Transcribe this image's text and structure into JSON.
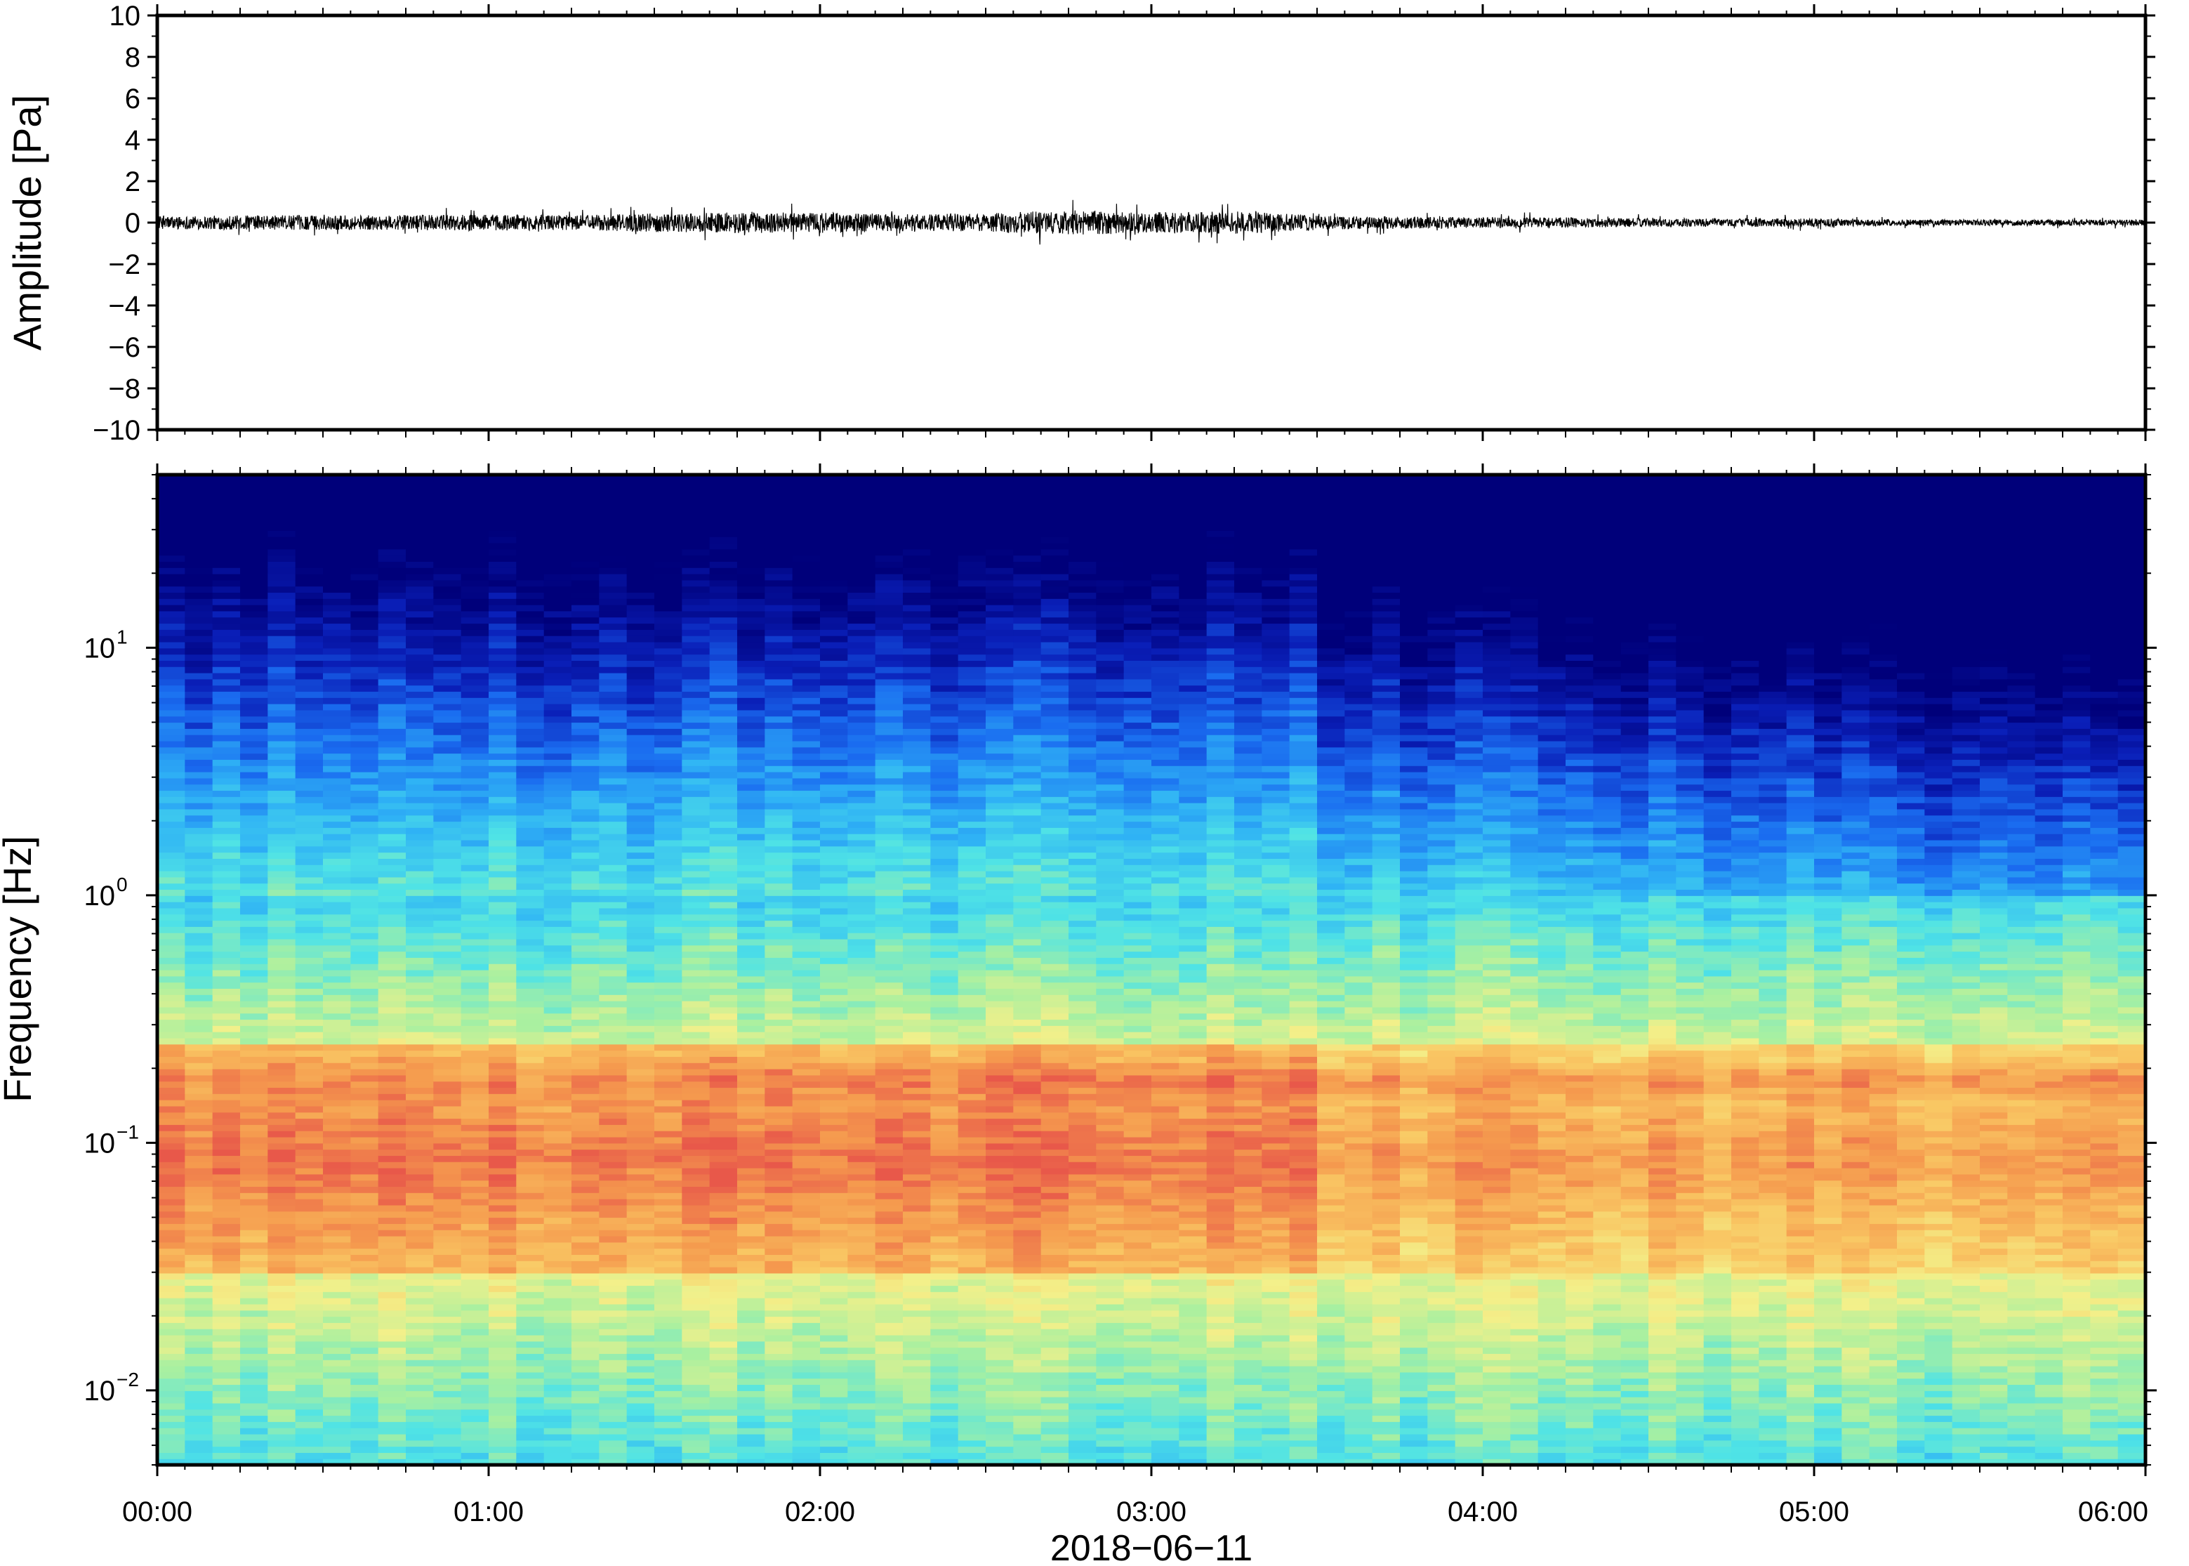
{
  "chart_data": [
    {
      "type": "line",
      "panel": "waveform",
      "ylabel": "Amplitude [Pa]",
      "ylim": [
        -10,
        10
      ],
      "yticks": [
        10,
        8,
        6,
        4,
        2,
        0,
        -2,
        -4,
        -6,
        -8,
        -10
      ],
      "ytick_labels": [
        "10",
        "8",
        "6",
        "4",
        "2",
        "0",
        "−2",
        "−4",
        "−6",
        "−8",
        "−10"
      ],
      "xlim_hours": [
        0,
        6
      ],
      "series": [
        {
          "color": "#000000",
          "envelope_x_hours": [
            0,
            0.25,
            0.5,
            0.75,
            1.0,
            1.25,
            1.5,
            1.75,
            2.0,
            2.25,
            2.5,
            2.75,
            3.0,
            3.25,
            3.5,
            3.75,
            4.0,
            4.25,
            4.5,
            4.75,
            5.0,
            5.25,
            5.5,
            5.75,
            6.0
          ],
          "envelope_amplitude_pa": [
            0.3,
            0.35,
            0.35,
            0.35,
            0.4,
            0.35,
            0.45,
            0.5,
            0.5,
            0.4,
            0.45,
            0.6,
            0.5,
            0.55,
            0.35,
            0.3,
            0.25,
            0.25,
            0.2,
            0.2,
            0.2,
            0.15,
            0.15,
            0.15,
            0.15
          ]
        }
      ]
    },
    {
      "type": "heatmap",
      "panel": "spectrogram",
      "ylabel": "Frequency [Hz]",
      "yscale": "log",
      "ylim_hz": [
        0.005,
        50
      ],
      "yticks_hz": [
        10,
        1,
        0.1,
        0.01
      ],
      "ytick_labels": [
        {
          "base": "10",
          "exp": "1"
        },
        {
          "base": "10",
          "exp": "0"
        },
        {
          "base": "10",
          "exp": "−1"
        },
        {
          "base": "10",
          "exp": "−2"
        }
      ],
      "colormap": "jet",
      "colormap_stops": [
        "#00007a",
        "#0a1fb8",
        "#1a6cf0",
        "#2fb2f5",
        "#4fe3e6",
        "#a9f0a0",
        "#f3f08a",
        "#f9c864",
        "#f59a4e",
        "#e8584a"
      ],
      "dominant_band_hz": [
        0.03,
        0.25
      ],
      "secondary_band_hz": 0.18,
      "xlabel": "2018−06−11",
      "xtick_labels": [
        "00:00",
        "01:00",
        "02:00",
        "03:00",
        "04:00",
        "05:00",
        "06:00"
      ],
      "xlim_hours": [
        0,
        6
      ]
    }
  ]
}
